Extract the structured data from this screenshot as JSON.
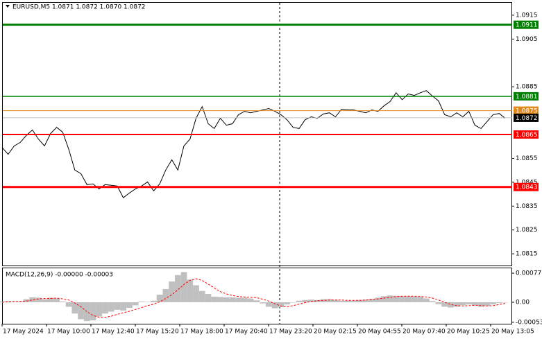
{
  "chart_data": [
    {
      "type": "line",
      "title": "EURUSD,M5 1.0871 1.0872 1.0870 1.0872",
      "ylim": [
        1.08101,
        1.09202
      ],
      "yticks": [
        1.0915,
        1.0905,
        1.0885,
        1.0855,
        1.0845,
        1.0835,
        1.0825,
        1.0815
      ],
      "xticklabels": [
        "17 May 2024",
        "17 May 10:00",
        "17 May 12:40",
        "17 May 15:20",
        "17 May 18:00",
        "17 May 20:40",
        "17 May 23:20",
        "20 May 02:15",
        "20 May 04:55",
        "20 May 07:40",
        "20 May 10:25",
        "20 May 13:05"
      ],
      "series": [
        {
          "color": "#000000",
          "values": [
            1.08596,
            1.08567,
            1.08602,
            1.08617,
            1.08646,
            1.08669,
            1.08631,
            1.08602,
            1.08654,
            1.0868,
            1.0866,
            1.08588,
            1.08501,
            1.08486,
            1.0844,
            1.08443,
            1.08422,
            1.0844,
            1.08437,
            1.08434,
            1.08385,
            1.08405,
            1.08422,
            1.08434,
            1.08451,
            1.08414,
            1.08443,
            1.08501,
            1.08544,
            1.08501,
            1.08602,
            1.08631,
            1.08718,
            1.08767,
            1.08695,
            1.08675,
            1.08718,
            1.08689,
            1.08695,
            1.08733,
            1.08747,
            1.08741,
            1.08747,
            1.08753,
            1.08759,
            1.08747,
            1.08733,
            1.08712,
            1.0868,
            1.08675,
            1.08712,
            1.08724,
            1.08718,
            1.08736,
            1.08741,
            1.08724,
            1.08756,
            1.08753,
            1.08753,
            1.08747,
            1.08741,
            1.08753,
            1.08747,
            1.0877,
            1.08788,
            1.08825,
            1.08796,
            1.0882,
            1.08814,
            1.08825,
            1.08834,
            1.08811,
            1.08791,
            1.08733,
            1.08724,
            1.08741,
            1.08724,
            1.08747,
            1.08689,
            1.08675,
            1.08704,
            1.08733,
            1.08738,
            1.08718
          ]
        }
      ],
      "levels": [
        {
          "value": 1.0911,
          "color": "#008000",
          "line_width": 3
        },
        {
          "value": 1.0881,
          "color": "#008000",
          "line_width": 1.5
        },
        {
          "value": 1.0875,
          "color": "#e08a1e",
          "line_width": 1
        },
        {
          "value": 1.0865,
          "color": "#ff0000",
          "line_width": 2
        },
        {
          "value": 1.0843,
          "color": "#ff0000",
          "line_width": 3
        },
        {
          "value": 1.0872,
          "color": "#000000",
          "line_color": "#c0c0c0",
          "line_width": 1
        }
      ]
    },
    {
      "type": "bar",
      "title": "MACD(12,26,9) -0.00000 -0.00003",
      "ylim": [
        -0.00057,
        0.0009
      ],
      "yticks": [
        0.00077,
        {
          "value": 0,
          "label": "0.00"
        },
        -0.00053
      ],
      "series": [
        {
          "color": "#c0c0c0",
          "values": [
            2e-05,
            3e-05,
            1e-05,
            2e-05,
            8e-05,
            0.00013,
            0.00012,
            8e-05,
            0.00012,
            0.0001,
            2e-05,
            -0.00012,
            -0.0003,
            -0.00045,
            -0.0005,
            -0.00048,
            -0.00038,
            -0.0003,
            -0.00025,
            -0.0002,
            -0.00022,
            -0.00015,
            -8e-05,
            2e-05,
            1e-05,
            4e-05,
            0.0002,
            0.00035,
            0.00055,
            0.00072,
            0.0008,
            0.0006,
            0.00045,
            0.0003,
            0.00022,
            0.00015,
            0.00014,
            0.00013,
            0.00013,
            0.00012,
            0.00012,
            0.0001,
            5e-05,
            -3e-05,
            -0.00012,
            -0.00016,
            -0.00013,
            -6e-05,
            0.0,
            4e-05,
            6e-05,
            7e-05,
            6e-05,
            8e-05,
            8e-05,
            6e-05,
            4e-05,
            4e-05,
            4e-05,
            6e-05,
            7e-05,
            9e-05,
            0.00012,
            0.00016,
            0.00018,
            0.00017,
            0.00016,
            0.00016,
            0.00015,
            0.00014,
            0.0001,
            3e-05,
            -5e-05,
            -0.00012,
            -0.00014,
            -0.00012,
            -8e-05,
            -6e-05,
            -8e-05,
            -0.00012,
            -0.0001,
            -6e-05,
            -2e-05,
            0.0
          ]
        },
        {
          "color": "#ff0000",
          "dashed": true,
          "values": [
            0.0,
            1e-05,
            2e-05,
            2e-05,
            3e-05,
            6e-05,
            9e-05,
            0.0001,
            0.0001,
            0.00011,
            9e-05,
            6e-05,
            -2e-05,
            -0.00012,
            -0.00025,
            -0.00035,
            -0.0004,
            -0.0004,
            -0.00037,
            -0.00032,
            -0.00028,
            -0.00024,
            -0.00019,
            -0.00014,
            -9e-05,
            -5e-05,
            1e-05,
            0.0001,
            0.0002,
            0.00033,
            0.00047,
            0.00058,
            0.00062,
            0.00058,
            0.00048,
            0.00038,
            0.00028,
            0.00022,
            0.00018,
            0.00015,
            0.00014,
            0.00013,
            0.00012,
            8e-05,
            3e-05,
            -4e-05,
            -0.0001,
            -0.00012,
            -9e-05,
            -5e-05,
            -1e-05,
            2e-05,
            4e-05,
            5e-05,
            6e-05,
            6e-05,
            6e-05,
            5e-05,
            5e-05,
            5e-05,
            6e-05,
            7e-05,
            9e-05,
            0.00011,
            0.00013,
            0.00015,
            0.00016,
            0.00016,
            0.00016,
            0.00015,
            0.00014,
            0.00011,
            6e-05,
            0.0,
            -6e-05,
            -9e-05,
            -0.0001,
            -9e-05,
            -8e-05,
            -9e-05,
            -0.0001,
            -9e-05,
            -6e-05,
            -3e-05
          ]
        }
      ]
    }
  ]
}
